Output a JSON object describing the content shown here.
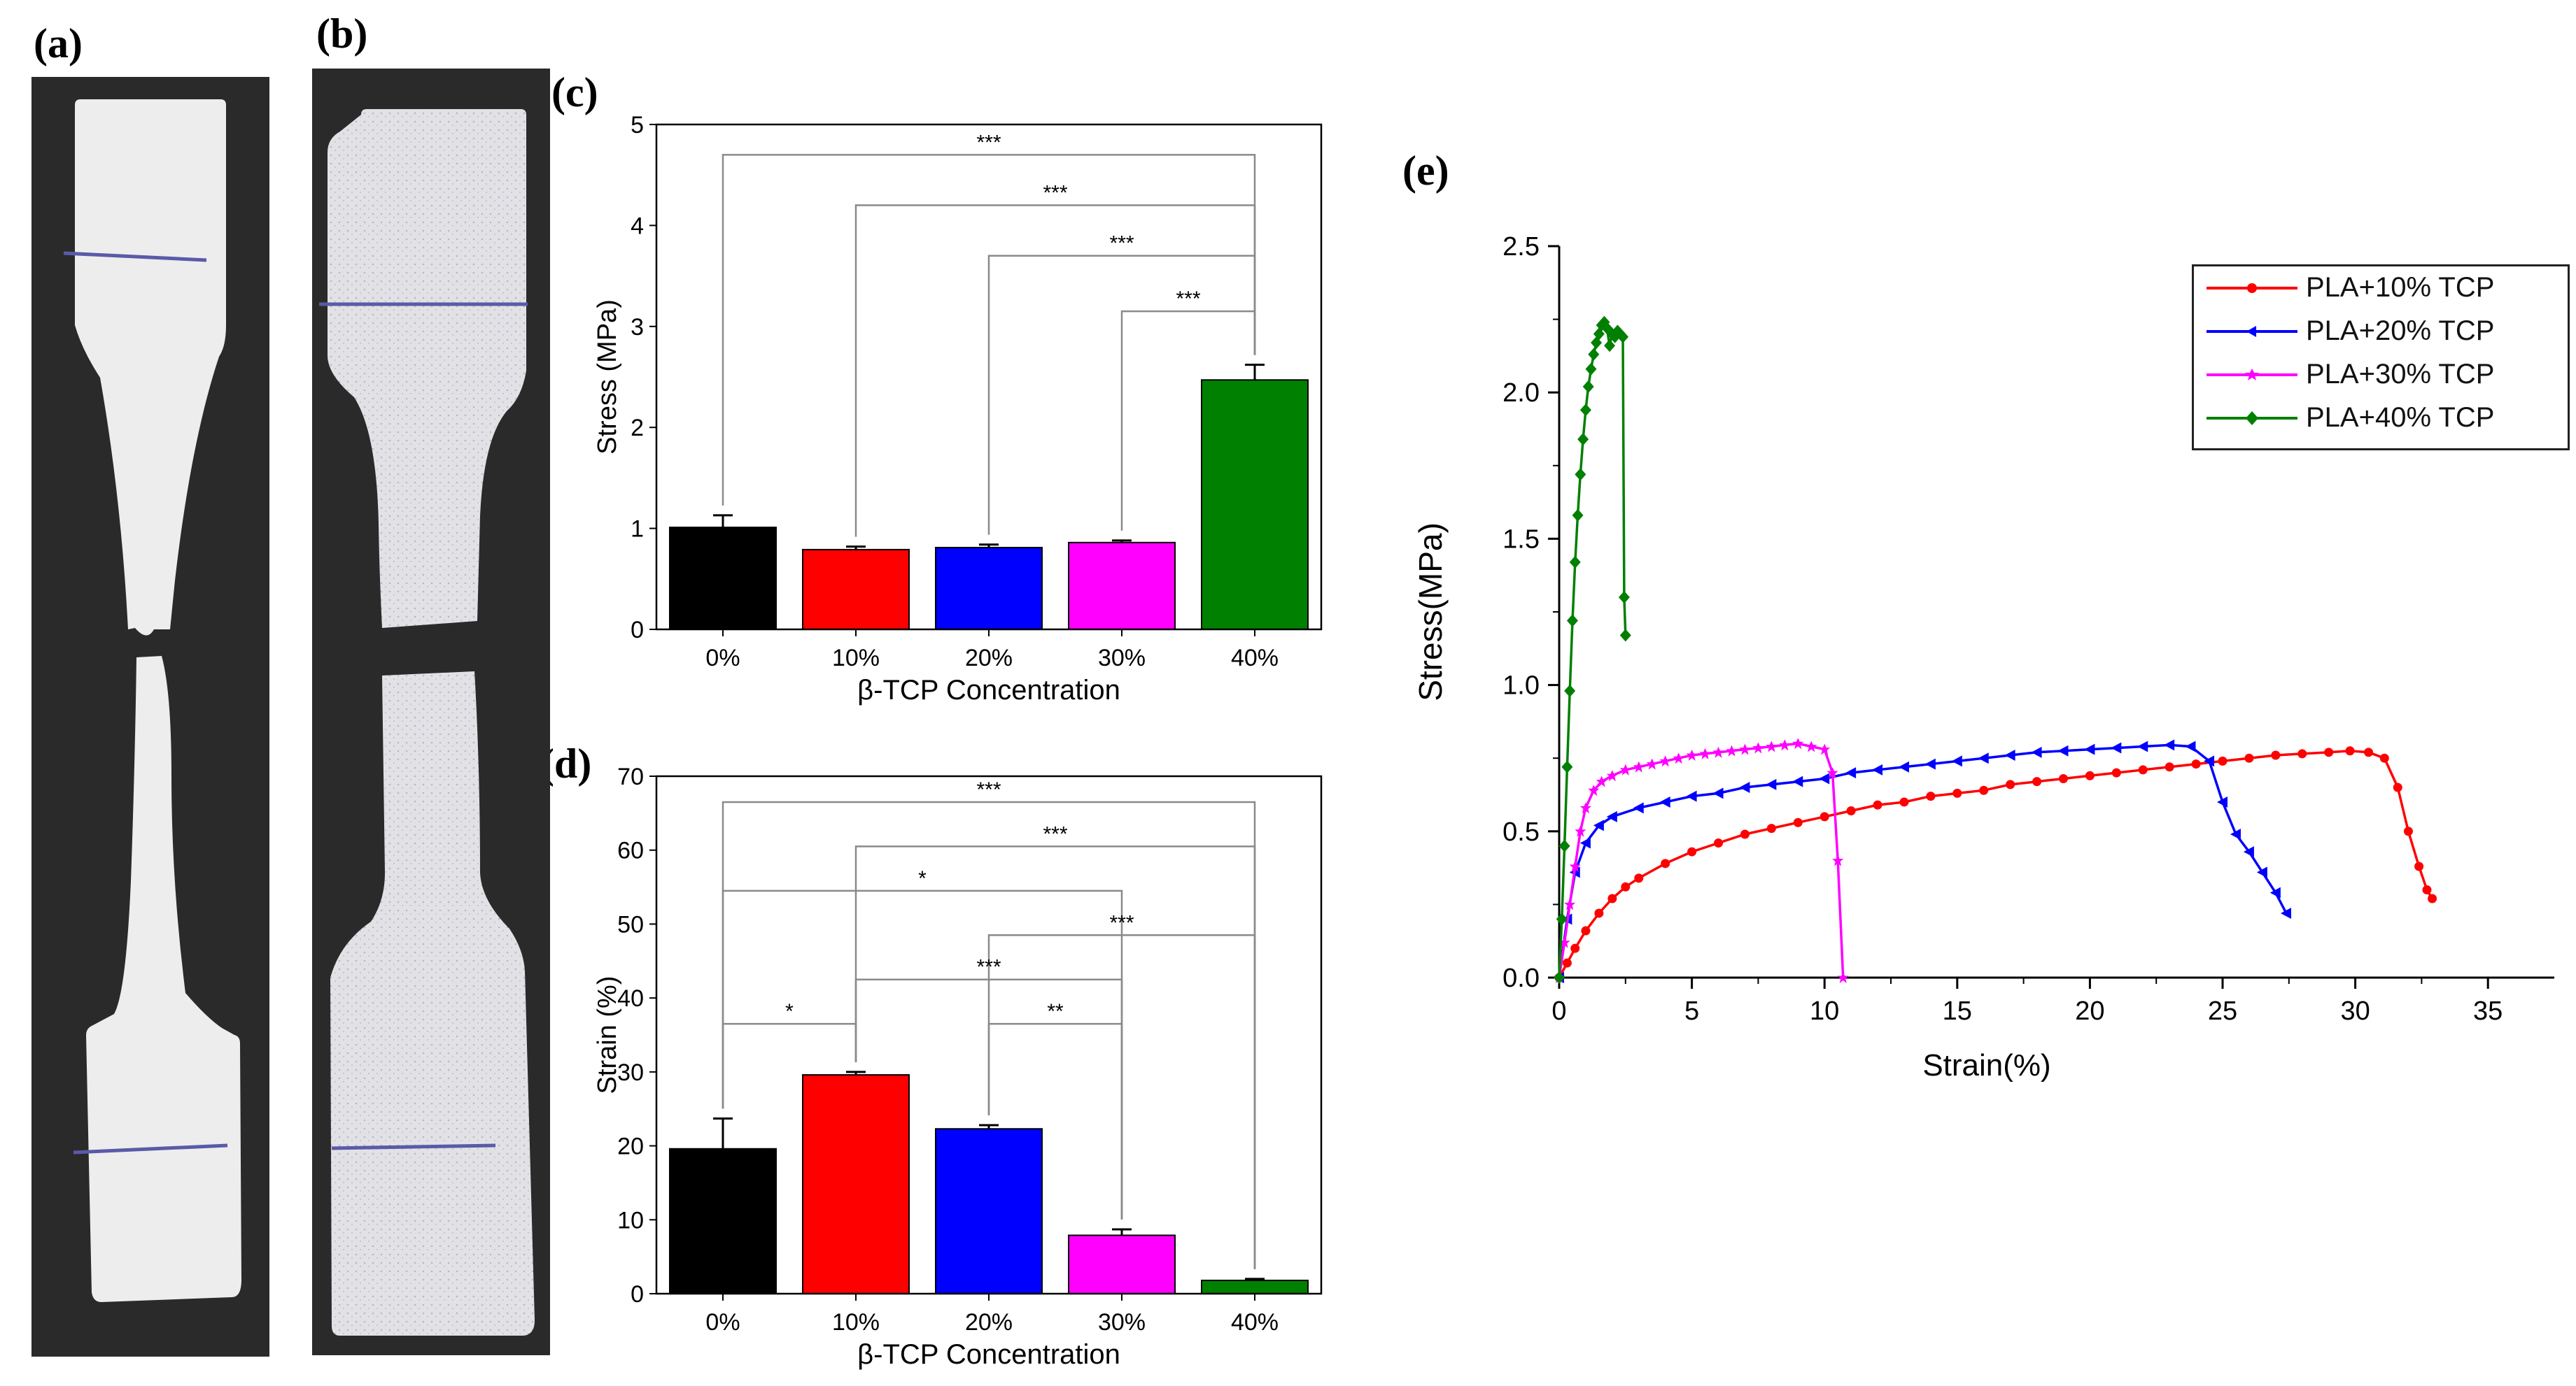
{
  "panels": {
    "a": "(a)",
    "b": "(b)",
    "c": "(c)",
    "d": "(d)",
    "e": "(e)"
  },
  "colors": {
    "black": "#000000",
    "red": "#ff0000",
    "blue": "#0000ff",
    "magenta": "#ff00ff",
    "green": "#008000",
    "photo_bg": "#2a2a2a",
    "specimen": "#e8e8e8",
    "mark": "#5a5aa8"
  },
  "chart_data": [
    {
      "id": "c",
      "type": "bar",
      "categories": [
        "0%",
        "10%",
        "20%",
        "30%",
        "40%"
      ],
      "values": [
        1.01,
        0.79,
        0.81,
        0.86,
        2.47
      ],
      "errors": [
        0.12,
        0.03,
        0.03,
        0.02,
        0.15
      ],
      "bar_colors": [
        "#000000",
        "#ff0000",
        "#0000ff",
        "#ff00ff",
        "#008000"
      ],
      "xlabel": "β-TCP Concentration",
      "ylabel": "Stress (MPa)",
      "ylim": [
        0,
        5
      ],
      "yticks": [
        "0",
        "1",
        "2",
        "3",
        "4",
        "5"
      ],
      "significance": [
        {
          "from": 0,
          "to": 4,
          "level": 4.7,
          "label": "***"
        },
        {
          "from": 1,
          "to": 4,
          "level": 4.2,
          "label": "***"
        },
        {
          "from": 2,
          "to": 4,
          "level": 3.7,
          "label": "***"
        },
        {
          "from": 3,
          "to": 4,
          "level": 3.15,
          "label": "***"
        }
      ]
    },
    {
      "id": "d",
      "type": "bar",
      "categories": [
        "0%",
        "10%",
        "20%",
        "30%",
        "40%"
      ],
      "values": [
        19.6,
        29.6,
        22.3,
        7.9,
        1.8
      ],
      "errors": [
        4.1,
        0.4,
        0.5,
        0.8,
        0.2
      ],
      "bar_colors": [
        "#000000",
        "#ff0000",
        "#0000ff",
        "#ff00ff",
        "#008000"
      ],
      "xlabel": "β-TCP Concentration",
      "ylabel": "Strain (%)",
      "ylim": [
        0,
        70
      ],
      "yticks": [
        "0",
        "10",
        "20",
        "30",
        "40",
        "50",
        "60",
        "70"
      ],
      "significance": [
        {
          "from": 0,
          "to": 4,
          "level": 66.5,
          "label": "***"
        },
        {
          "from": 1,
          "to": 4,
          "level": 60.5,
          "label": "***"
        },
        {
          "from": 0,
          "to": 3,
          "level": 54.5,
          "label": "*"
        },
        {
          "from": 2,
          "to": 4,
          "level": 48.5,
          "label": "***"
        },
        {
          "from": 1,
          "to": 3,
          "level": 42.5,
          "label": "***"
        },
        {
          "from": 0,
          "to": 1,
          "level": 36.5,
          "label": "*"
        },
        {
          "from": 2,
          "to": 3,
          "level": 36.5,
          "label": "**"
        }
      ]
    },
    {
      "id": "e",
      "type": "line",
      "xlabel": "Strain(%)",
      "ylabel": "Stress(MPa)",
      "xlim": [
        0,
        37.5
      ],
      "ylim": [
        0,
        2.5
      ],
      "xticks": [
        "0",
        "5",
        "10",
        "15",
        "20",
        "25",
        "30",
        "35"
      ],
      "yticks": [
        "0.0",
        "0.5",
        "1.0",
        "1.5",
        "2.0",
        "2.5"
      ],
      "series": [
        {
          "name": "PLA+10% TCP",
          "color": "#ff0000",
          "marker": "circle",
          "x": [
            0,
            0.3,
            0.6,
            1,
            1.5,
            2,
            2.5,
            3,
            4,
            5,
            6,
            7,
            8,
            9,
            10,
            11,
            12,
            13,
            14,
            15,
            16,
            17,
            18,
            19,
            20,
            21,
            22,
            23,
            24,
            25,
            26,
            27,
            28,
            29,
            29.8,
            30.5,
            31.1,
            31.6,
            32.0,
            32.4,
            32.7,
            32.9
          ],
          "y": [
            0,
            0.05,
            0.1,
            0.16,
            0.22,
            0.27,
            0.31,
            0.34,
            0.39,
            0.43,
            0.46,
            0.49,
            0.51,
            0.53,
            0.55,
            0.57,
            0.59,
            0.6,
            0.62,
            0.63,
            0.64,
            0.66,
            0.67,
            0.68,
            0.69,
            0.7,
            0.71,
            0.72,
            0.73,
            0.74,
            0.75,
            0.76,
            0.765,
            0.77,
            0.775,
            0.77,
            0.75,
            0.65,
            0.5,
            0.38,
            0.3,
            0.27
          ]
        },
        {
          "name": "PLA+20% TCP",
          "color": "#0000ff",
          "marker": "triangle",
          "x": [
            0,
            0.3,
            0.6,
            1,
            1.5,
            2,
            3,
            4,
            5,
            6,
            7,
            8,
            9,
            10,
            11,
            12,
            13,
            14,
            15,
            16,
            17,
            18,
            19,
            20,
            21,
            22,
            23,
            23.8,
            24.5,
            25.0,
            25.5,
            26.0,
            26.5,
            27.0,
            27.4
          ],
          "y": [
            0,
            0.2,
            0.36,
            0.46,
            0.52,
            0.55,
            0.58,
            0.6,
            0.62,
            0.63,
            0.65,
            0.66,
            0.67,
            0.68,
            0.7,
            0.71,
            0.72,
            0.73,
            0.74,
            0.75,
            0.76,
            0.77,
            0.775,
            0.78,
            0.785,
            0.79,
            0.795,
            0.79,
            0.74,
            0.6,
            0.49,
            0.43,
            0.36,
            0.29,
            0.22
          ]
        },
        {
          "name": "PLA+30% TCP",
          "color": "#ff00ff",
          "marker": "star",
          "x": [
            0,
            0.2,
            0.4,
            0.6,
            0.8,
            1,
            1.3,
            1.6,
            2,
            2.5,
            3,
            3.5,
            4,
            4.5,
            5,
            5.5,
            6,
            6.5,
            7,
            7.5,
            8,
            8.5,
            9,
            9.5,
            10,
            10.3,
            10.5,
            10.7
          ],
          "y": [
            0,
            0.12,
            0.25,
            0.38,
            0.5,
            0.58,
            0.64,
            0.67,
            0.69,
            0.71,
            0.72,
            0.73,
            0.74,
            0.75,
            0.76,
            0.765,
            0.77,
            0.775,
            0.78,
            0.785,
            0.79,
            0.795,
            0.8,
            0.79,
            0.78,
            0.7,
            0.4,
            0.0
          ]
        },
        {
          "name": "PLA+40% TCP",
          "color": "#008000",
          "marker": "diamond",
          "x": [
            0,
            0.1,
            0.2,
            0.3,
            0.4,
            0.5,
            0.6,
            0.7,
            0.8,
            0.9,
            1.0,
            1.1,
            1.2,
            1.3,
            1.4,
            1.5,
            1.6,
            1.7,
            1.8,
            1.9,
            2.0,
            2.1,
            2.2,
            2.3,
            2.4,
            2.45,
            2.5
          ],
          "y": [
            0,
            0.2,
            0.45,
            0.72,
            0.98,
            1.22,
            1.42,
            1.58,
            1.72,
            1.84,
            1.94,
            2.02,
            2.08,
            2.13,
            2.17,
            2.2,
            2.23,
            2.24,
            2.22,
            2.16,
            2.2,
            2.19,
            2.21,
            2.2,
            2.19,
            1.3,
            1.17
          ]
        }
      ]
    }
  ]
}
